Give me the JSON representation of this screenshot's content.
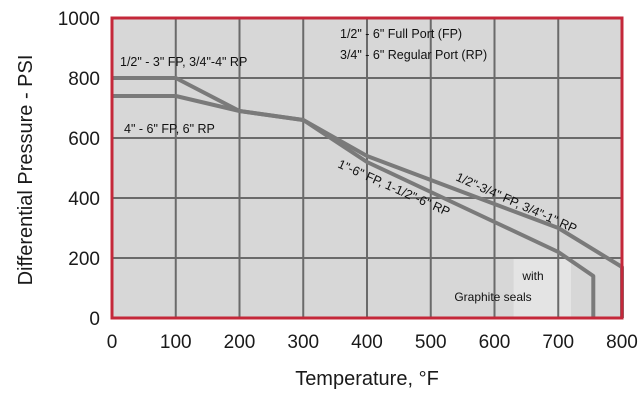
{
  "chart_data": {
    "type": "line",
    "xlabel": "Temperature, °F",
    "ylabel": "Differential Pressure - PSI",
    "xlim": [
      0,
      800
    ],
    "ylim": [
      0,
      1000
    ],
    "x_ticks": [
      "0",
      "100",
      "200",
      "300",
      "400",
      "500",
      "600",
      "700",
      "800"
    ],
    "y_ticks": [
      "0",
      "200",
      "400",
      "600",
      "800",
      "1000"
    ],
    "grid": true,
    "series": [
      {
        "name": "1/2\" - 3\" FP, 3/4\"-4\" RP",
        "x": [
          0,
          100,
          200,
          300,
          400,
          500,
          600,
          700,
          800,
          800
        ],
        "y": [
          800,
          800,
          690,
          660,
          540,
          460,
          380,
          300,
          170,
          0
        ]
      },
      {
        "name": "4\" - 6\" FP, 6\" RP",
        "x": [
          0,
          100,
          200,
          300,
          400,
          500,
          600,
          700,
          755,
          755
        ],
        "y": [
          740,
          740,
          690,
          660,
          520,
          420,
          320,
          220,
          140,
          0
        ]
      }
    ],
    "annotations": {
      "legend_line1": "1/2\" - 6\" Full Port (FP)",
      "legend_line2": "3/4\" - 6\" Regular Port (RP)",
      "upper_left": "1/2\" - 3\" FP, 3/4\"-4\" RP",
      "lower_left": "4\" - 6\" FP, 6\" RP",
      "mid_diag": "1\"-6\" FP, 1-1/2\"-6\" RP",
      "upper_diag": "1/2\"-3/4\" FP, 3/4\"-1\" RP",
      "seal_line1": "with",
      "seal_line2": "Graphite seals"
    },
    "colors": {
      "plot_background": "#d7d7d7",
      "border": "#c4283a",
      "curve": "#7a7a7a",
      "grid": "#6a6a6a",
      "seal_box": "#e4e4e4"
    }
  }
}
